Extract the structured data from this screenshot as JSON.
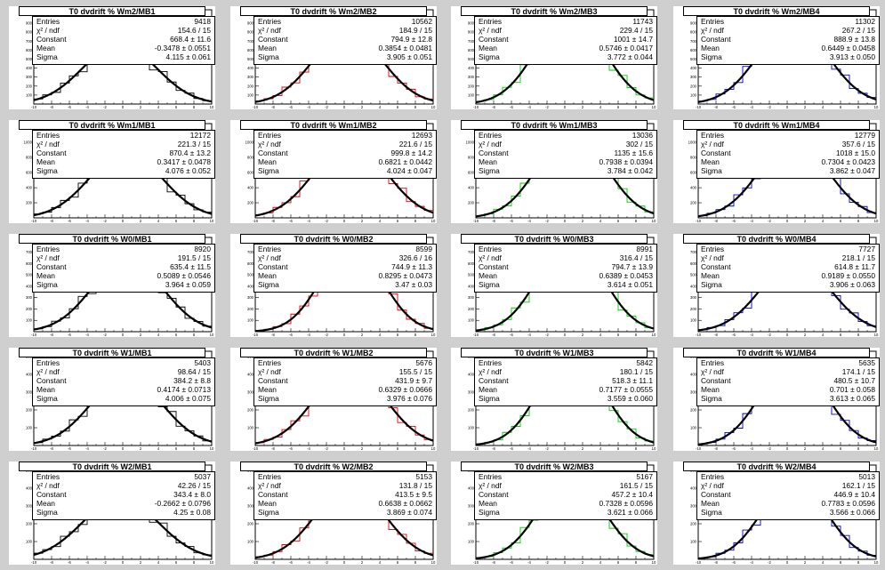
{
  "labels": {
    "entries": "Entries",
    "chi2": "χ² / ndf",
    "constant": "Constant",
    "mean": "Mean",
    "sigma": "Sigma"
  },
  "colors": {
    "MB1": "#000000",
    "MB2": "#dd0000",
    "MB3": "#00cc00",
    "MB4": "#0000cc",
    "fit": "#000000",
    "background": "#cfcfcf"
  },
  "chart_data": {
    "type": "histogram-grid",
    "xlim": [
      -10,
      10
    ],
    "rows": [
      {
        "wheel": "Wm2",
        "yticks": [
          "100",
          "200",
          "300",
          "400",
          "500",
          "600",
          "700",
          "800",
          "900",
          "1000"
        ],
        "ymax": 1050,
        "pads": [
          {
            "title": "T0 dvdrift % Wm2/MB1",
            "entries": "9418",
            "chi2": "154.6 / 15",
            "constant": "668.4 ± 11.6",
            "mean": "-0.3478 ± 0.0551",
            "sigma": "4.115 ± 0.061",
            "amp": 668.4,
            "mu": -0.3478,
            "sig": 4.115,
            "color": "#000000"
          },
          {
            "title": "T0 dvdrift % Wm2/MB2",
            "entries": "10562",
            "chi2": "184.9 / 15",
            "constant": "794.9 ± 12.8",
            "mean": "0.3854 ± 0.0481",
            "sigma": "3.905 ± 0.051",
            "amp": 794.9,
            "mu": 0.3854,
            "sig": 3.905,
            "color": "#dd0000"
          },
          {
            "title": "T0 dvdrift % Wm2/MB3",
            "entries": "11743",
            "chi2": "229.4 / 15",
            "constant": "1001 ± 14.7",
            "mean": "0.5746 ± 0.0417",
            "sigma": "3.772 ± 0.044",
            "amp": 1001,
            "mu": 0.5746,
            "sig": 3.772,
            "color": "#00cc00"
          },
          {
            "title": "T0 dvdrift % Wm2/MB4",
            "entries": "11302",
            "chi2": "267.2 / 15",
            "constant": "888.9 ± 13.8",
            "mean": "0.6449 ± 0.0458",
            "sigma": "3.913 ± 0.050",
            "amp": 888.9,
            "mu": 0.6449,
            "sig": 3.913,
            "color": "#0000cc"
          }
        ]
      },
      {
        "wheel": "Wm1",
        "yticks": [
          "200",
          "400",
          "600",
          "800",
          "1000",
          "1200"
        ],
        "ymax": 1250,
        "pads": [
          {
            "title": "T0 dvdrift % Wm1/MB1",
            "entries": "12172",
            "chi2": "221.3 / 15",
            "constant": "870.4 ± 13.2",
            "mean": "0.3417 ± 0.0478",
            "sigma": "4.076 ± 0.052",
            "amp": 870.4,
            "mu": 0.3417,
            "sig": 4.076,
            "color": "#000000"
          },
          {
            "title": "T0 dvdrift % Wm1/MB2",
            "entries": "12693",
            "chi2": "221.6 / 15",
            "constant": "999.8 ± 14.2",
            "mean": "0.6821 ± 0.0442",
            "sigma": "4.024 ± 0.047",
            "amp": 999.8,
            "mu": 0.6821,
            "sig": 4.024,
            "color": "#dd0000"
          },
          {
            "title": "T0 dvdrift % Wm1/MB3",
            "entries": "13036",
            "chi2": "302 / 15",
            "constant": "1135 ± 15.6",
            "mean": "0.7938 ± 0.0394",
            "sigma": "3.784 ± 0.042",
            "amp": 1135,
            "mu": 0.7938,
            "sig": 3.784,
            "color": "#00cc00"
          },
          {
            "title": "T0 dvdrift % Wm1/MB4",
            "entries": "12779",
            "chi2": "357.6 / 15",
            "constant": "1018 ± 15.0",
            "mean": "0.7304 ± 0.0423",
            "sigma": "3.862 ± 0.047",
            "amp": 1018,
            "mu": 0.7304,
            "sig": 3.862,
            "color": "#0000cc"
          }
        ]
      },
      {
        "wheel": "W0",
        "yticks": [
          "100",
          "200",
          "300",
          "400",
          "500",
          "600",
          "700",
          "800"
        ],
        "ymax": 830,
        "pads": [
          {
            "title": "T0 dvdrift % W0/MB1",
            "entries": "8920",
            "chi2": "191.5 / 15",
            "constant": "635.4 ± 11.5",
            "mean": "0.5089 ± 0.0546",
            "sigma": "3.964 ± 0.059",
            "amp": 635.4,
            "mu": 0.5089,
            "sig": 3.964,
            "color": "#000000"
          },
          {
            "title": "T0 dvdrift % W0/MB2",
            "entries": "8599",
            "chi2": "326.6 / 16",
            "constant": "744.9 ± 11.3",
            "mean": "0.8295 ± 0.0473",
            "sigma": "3.47 ± 0.03",
            "amp": 744.9,
            "mu": 0.8295,
            "sig": 3.47,
            "color": "#dd0000"
          },
          {
            "title": "T0 dvdrift % W0/MB3",
            "entries": "8991",
            "chi2": "316.4 / 15",
            "constant": "794.7 ± 13.9",
            "mean": "0.6389 ± 0.0453",
            "sigma": "3.614 ± 0.051",
            "amp": 794.7,
            "mu": 0.6389,
            "sig": 3.614,
            "color": "#00cc00"
          },
          {
            "title": "T0 dvdrift % W0/MB4",
            "entries": "7727",
            "chi2": "218.1 / 15",
            "constant": "614.8 ± 11.7",
            "mean": "0.9189 ± 0.0550",
            "sigma": "3.906 ± 0.063",
            "amp": 614.8,
            "mu": 0.9189,
            "sig": 3.906,
            "color": "#0000cc"
          }
        ]
      },
      {
        "wheel": "W1",
        "yticks": [
          "100",
          "200",
          "300",
          "400",
          "500"
        ],
        "ymax": 530,
        "pads": [
          {
            "title": "T0 dvdrift % W1/MB1",
            "entries": "5403",
            "chi2": "98.64 / 15",
            "constant": "384.2 ± 8.8",
            "mean": "0.4174 ± 0.0713",
            "sigma": "4.006 ± 0.075",
            "amp": 384.2,
            "mu": 0.4174,
            "sig": 4.006,
            "color": "#000000"
          },
          {
            "title": "T0 dvdrift % W1/MB2",
            "entries": "5676",
            "chi2": "155.5 / 15",
            "constant": "431.9 ± 9.7",
            "mean": "0.6329 ± 0.0666",
            "sigma": "3.976 ± 0.076",
            "amp": 431.9,
            "mu": 0.6329,
            "sig": 3.976,
            "color": "#dd0000"
          },
          {
            "title": "T0 dvdrift % W1/MB3",
            "entries": "5842",
            "chi2": "180.1 / 15",
            "constant": "518.3 ± 11.1",
            "mean": "0.7177 ± 0.0555",
            "sigma": "3.559 ± 0.060",
            "amp": 518.3,
            "mu": 0.7177,
            "sig": 3.559,
            "color": "#00cc00"
          },
          {
            "title": "T0 dvdrift % W1/MB4",
            "entries": "5635",
            "chi2": "174.1 / 15",
            "constant": "480.5 ± 10.7",
            "mean": "0.701 ± 0.058",
            "sigma": "3.613 ± 0.065",
            "amp": 480.5,
            "mu": 0.701,
            "sig": 3.613,
            "color": "#0000cc"
          }
        ]
      },
      {
        "wheel": "W2",
        "yticks": [
          "100",
          "200",
          "300",
          "400",
          "500"
        ],
        "ymax": 530,
        "pads": [
          {
            "title": "T0 dvdrift % W2/MB1",
            "entries": "5037",
            "chi2": "42.26 / 15",
            "constant": "343.4 ± 8.0",
            "mean": "-0.2662 ± 0.0796",
            "sigma": "4.25 ± 0.08",
            "amp": 343.4,
            "mu": -0.2662,
            "sig": 4.25,
            "color": "#000000"
          },
          {
            "title": "T0 dvdrift % W2/MB2",
            "entries": "5153",
            "chi2": "131.8 / 15",
            "constant": "413.5 ± 9.5",
            "mean": "0.6638 ± 0.0662",
            "sigma": "3.869 ± 0.074",
            "amp": 413.5,
            "mu": 0.6638,
            "sig": 3.869,
            "color": "#dd0000"
          },
          {
            "title": "T0 dvdrift % W2/MB3",
            "entries": "5167",
            "chi2": "161.5 / 15",
            "constant": "457.2 ± 10.4",
            "mean": "0.7328 ± 0.0596",
            "sigma": "3.621 ± 0.066",
            "amp": 457.2,
            "mu": 0.7328,
            "sig": 3.621,
            "color": "#00cc00"
          },
          {
            "title": "T0 dvdrift % W2/MB4",
            "entries": "5013",
            "chi2": "162.1 / 15",
            "constant": "446.9 ± 10.4",
            "mean": "0.7783 ± 0.0596",
            "sigma": "3.566 ± 0.066",
            "amp": 446.9,
            "mu": 0.7783,
            "sig": 3.566,
            "color": "#0000cc"
          }
        ]
      }
    ],
    "xticks": [
      "-10",
      "-8",
      "-6",
      "-4",
      "-2",
      "0",
      "2",
      "4",
      "6",
      "8",
      "10"
    ]
  }
}
